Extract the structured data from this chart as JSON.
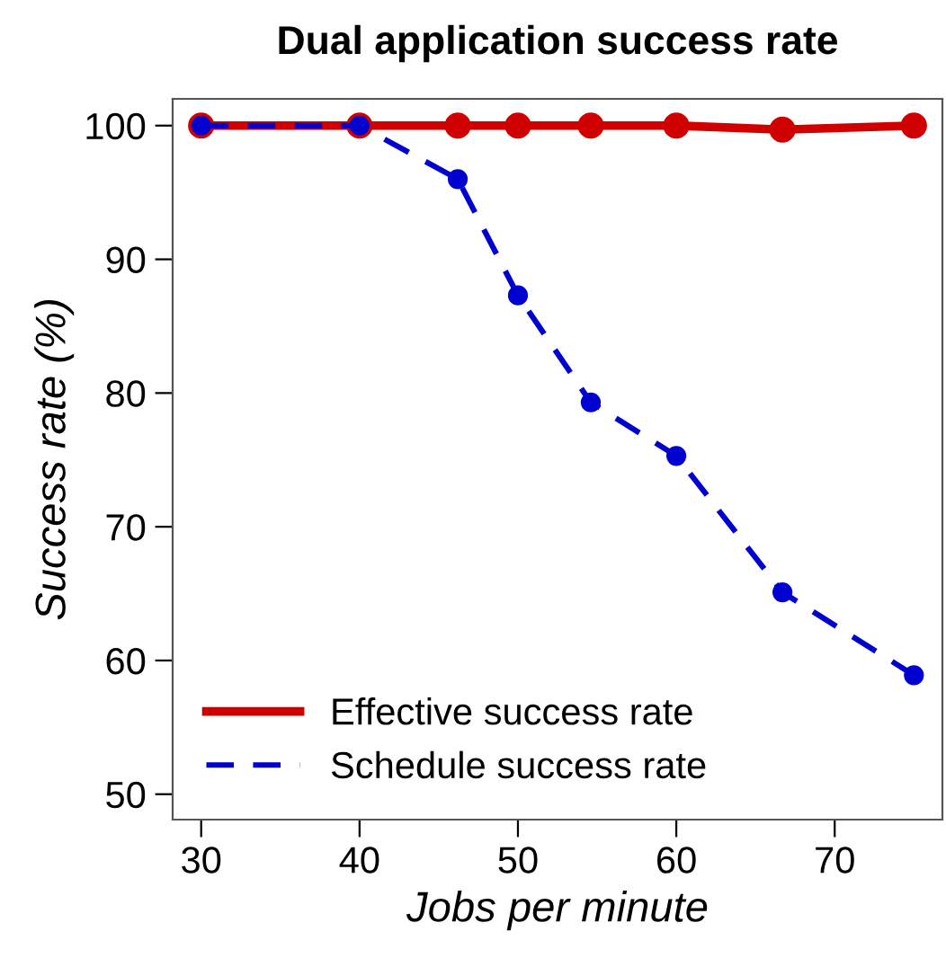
{
  "chart_data": {
    "type": "line",
    "title": "Dual application success rate",
    "xlabel": "Jobs per minute",
    "ylabel": "Success rate (%)",
    "x": [
      30,
      40,
      46.2,
      50,
      54.6,
      60,
      66.7,
      75
    ],
    "series": [
      {
        "name": "Effective success rate",
        "color": "#d00000",
        "line_style": "solid",
        "values": [
          100,
          100,
          100,
          100,
          100,
          100,
          99.7,
          100
        ]
      },
      {
        "name": "Schedule success rate",
        "color": "#0000d0",
        "line_style": "dashed",
        "values": [
          100,
          100,
          96,
          87.3,
          79.3,
          75.3,
          65.1,
          58.9
        ]
      }
    ],
    "xlim": [
      28.2,
      76.8
    ],
    "ylim": [
      48.1,
      102
    ],
    "xticks": [
      30,
      40,
      50,
      60,
      70
    ],
    "yticks": [
      50,
      60,
      70,
      80,
      90,
      100
    ],
    "marker": "circle",
    "grid": false,
    "legend": "bottom left"
  }
}
